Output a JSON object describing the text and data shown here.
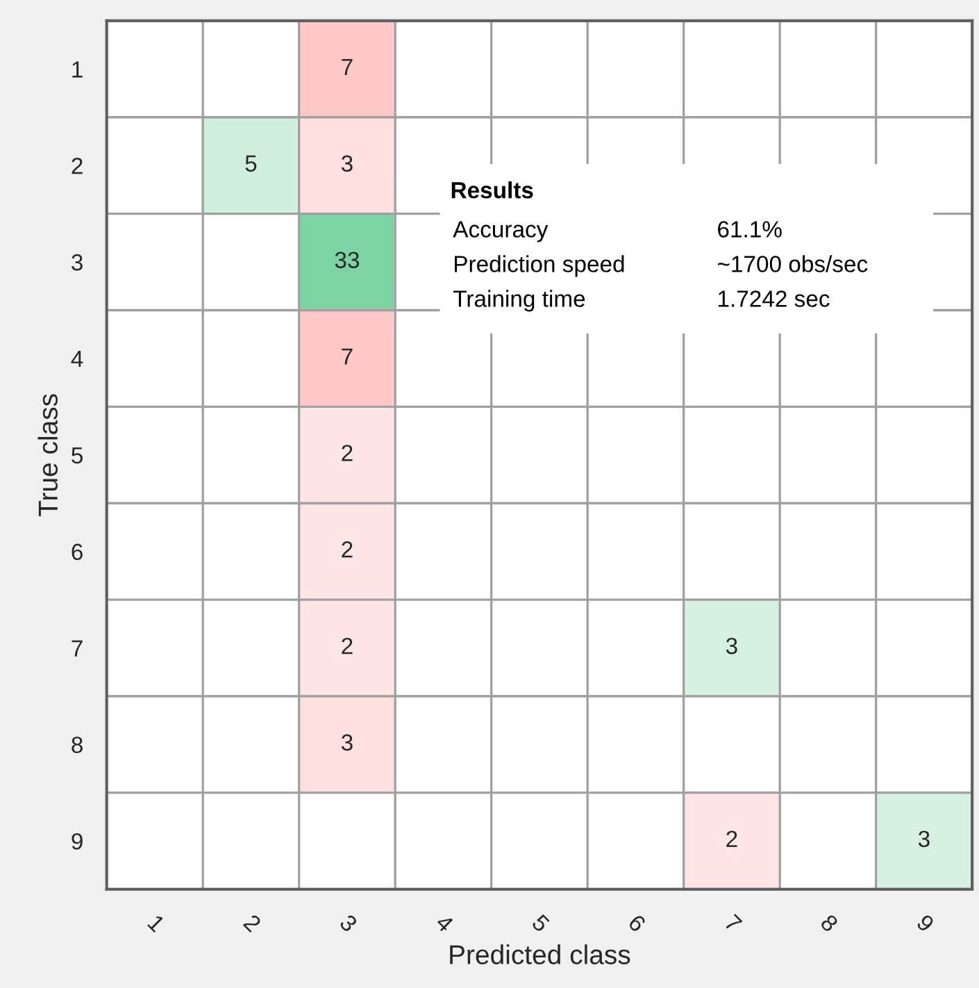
{
  "chart_data": {
    "type": "heatmap",
    "xlabel": "Predicted class",
    "ylabel": "True class",
    "categories": [
      "1",
      "2",
      "3",
      "4",
      "5",
      "6",
      "7",
      "8",
      "9"
    ],
    "y_categories": [
      "1",
      "2",
      "3",
      "4",
      "5",
      "6",
      "7",
      "8",
      "9"
    ],
    "cells": [
      [
        null,
        null,
        7,
        null,
        null,
        null,
        null,
        null,
        null
      ],
      [
        null,
        5,
        3,
        null,
        null,
        null,
        null,
        null,
        null
      ],
      [
        null,
        null,
        33,
        null,
        null,
        null,
        null,
        null,
        null
      ],
      [
        null,
        null,
        7,
        null,
        null,
        null,
        null,
        null,
        null
      ],
      [
        null,
        null,
        2,
        null,
        null,
        null,
        null,
        null,
        null
      ],
      [
        null,
        null,
        2,
        null,
        null,
        null,
        null,
        null,
        null
      ],
      [
        null,
        null,
        2,
        null,
        null,
        null,
        3,
        null,
        null
      ],
      [
        null,
        null,
        3,
        null,
        null,
        null,
        null,
        null,
        null
      ],
      [
        null,
        null,
        null,
        null,
        null,
        null,
        2,
        null,
        3
      ]
    ],
    "colors": [
      "#7dd3a3",
      "#ffc8c8"
    ],
    "grid": true,
    "data_labels": true,
    "annotations": [
      "Results",
      "Accuracy",
      "61.1%",
      "Prediction speed",
      "~1700 obs/sec",
      "Training time",
      "1.7242 sec"
    ]
  }
}
